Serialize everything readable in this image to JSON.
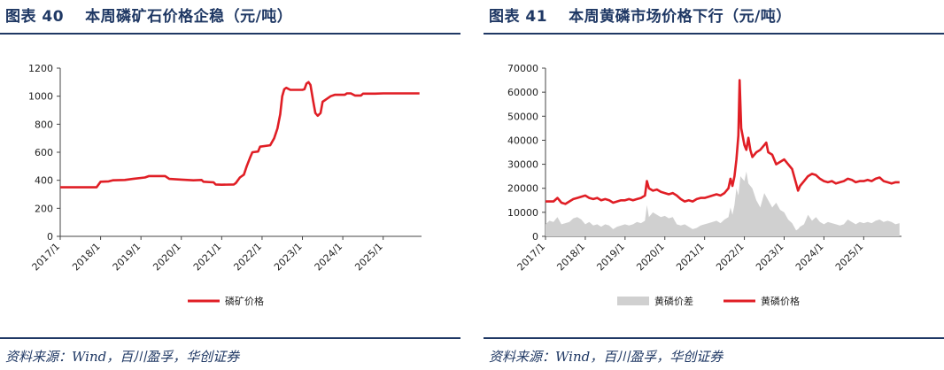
{
  "left": {
    "title_prefix": "图表 40",
    "title_text": "本周磷矿石价格企稳（元/吨）",
    "source": "资料来源：Wind，百川盈孚，华创证券"
  },
  "right": {
    "title_prefix": "图表 41",
    "title_text": "本周黄磷市场价格下行（元/吨）",
    "source": "资料来源：Wind，百川盈孚，华创证券"
  },
  "chart_data": [
    {
      "type": "line",
      "x_ticks": [
        "2017/1",
        "2018/1",
        "2019/1",
        "2020/1",
        "2021/1",
        "2022/1",
        "2023/1",
        "2024/1",
        "2025/1"
      ],
      "x_range": [
        2017.0,
        2025.95
      ],
      "ylim": [
        0,
        1200
      ],
      "y_ticks": [
        0,
        200,
        400,
        600,
        800,
        1000,
        1200
      ],
      "legend_position": "bottom",
      "series": [
        {
          "name": "磷矿价格",
          "color": "#e01e25",
          "points": [
            [
              2017.0,
              350
            ],
            [
              2017.5,
              350
            ],
            [
              2017.9,
              350
            ],
            [
              2018.0,
              390
            ],
            [
              2018.2,
              392
            ],
            [
              2018.3,
              400
            ],
            [
              2018.6,
              402
            ],
            [
              2018.8,
              410
            ],
            [
              2019.1,
              420
            ],
            [
              2019.2,
              430
            ],
            [
              2019.6,
              430
            ],
            [
              2019.7,
              410
            ],
            [
              2020.0,
              405
            ],
            [
              2020.3,
              400
            ],
            [
              2020.5,
              402
            ],
            [
              2020.55,
              390
            ],
            [
              2020.8,
              385
            ],
            [
              2020.85,
              370
            ],
            [
              2021.0,
              368
            ],
            [
              2021.3,
              370
            ],
            [
              2021.35,
              380
            ],
            [
              2021.45,
              420
            ],
            [
              2021.55,
              440
            ],
            [
              2021.62,
              500
            ],
            [
              2021.7,
              560
            ],
            [
              2021.76,
              600
            ],
            [
              2021.9,
              605
            ],
            [
              2021.95,
              640
            ],
            [
              2022.2,
              650
            ],
            [
              2022.3,
              700
            ],
            [
              2022.38,
              770
            ],
            [
              2022.45,
              870
            ],
            [
              2022.5,
              1000
            ],
            [
              2022.55,
              1050
            ],
            [
              2022.6,
              1060
            ],
            [
              2022.7,
              1045
            ],
            [
              2023.0,
              1045
            ],
            [
              2023.05,
              1050
            ],
            [
              2023.1,
              1090
            ],
            [
              2023.15,
              1100
            ],
            [
              2023.2,
              1080
            ],
            [
              2023.27,
              960
            ],
            [
              2023.32,
              880
            ],
            [
              2023.38,
              860
            ],
            [
              2023.45,
              880
            ],
            [
              2023.5,
              960
            ],
            [
              2023.6,
              980
            ],
            [
              2023.7,
              1000
            ],
            [
              2023.8,
              1010
            ],
            [
              2023.9,
              1010
            ],
            [
              2024.05,
              1010
            ],
            [
              2024.1,
              1020
            ],
            [
              2024.2,
              1020
            ],
            [
              2024.3,
              1005
            ],
            [
              2024.45,
              1005
            ],
            [
              2024.5,
              1018
            ],
            [
              2024.8,
              1018
            ],
            [
              2025.0,
              1020
            ],
            [
              2025.5,
              1020
            ],
            [
              2025.9,
              1020
            ]
          ]
        }
      ]
    },
    {
      "type": "line+area",
      "x_ticks": [
        "2017/1",
        "2018/1",
        "2019/1",
        "2020/1",
        "2021/1",
        "2022/1",
        "2023/1",
        "2024/1",
        "2025/1"
      ],
      "x_range": [
        2017.0,
        2025.95
      ],
      "ylim": [
        0,
        70000
      ],
      "y_ticks": [
        0,
        10000,
        20000,
        30000,
        40000,
        50000,
        60000,
        70000
      ],
      "legend_position": "bottom",
      "series": [
        {
          "name": "黄磷价差",
          "type": "area",
          "color": "#d0d0d0",
          "points": [
            [
              2017.0,
              5000
            ],
            [
              2017.1,
              6500
            ],
            [
              2017.2,
              6000
            ],
            [
              2017.3,
              8000
            ],
            [
              2017.4,
              5000
            ],
            [
              2017.5,
              5500
            ],
            [
              2017.6,
              6000
            ],
            [
              2017.7,
              7500
            ],
            [
              2017.8,
              8000
            ],
            [
              2017.9,
              7000
            ],
            [
              2018.0,
              5000
            ],
            [
              2018.1,
              6000
            ],
            [
              2018.2,
              4500
            ],
            [
              2018.3,
              5000
            ],
            [
              2018.4,
              4000
            ],
            [
              2018.5,
              5000
            ],
            [
              2018.6,
              4500
            ],
            [
              2018.7,
              3000
            ],
            [
              2018.8,
              4000
            ],
            [
              2018.9,
              4500
            ],
            [
              2019.0,
              5000
            ],
            [
              2019.1,
              4500
            ],
            [
              2019.2,
              5000
            ],
            [
              2019.3,
              6000
            ],
            [
              2019.4,
              5500
            ],
            [
              2019.5,
              6500
            ],
            [
              2019.55,
              13000
            ],
            [
              2019.6,
              8000
            ],
            [
              2019.7,
              10000
            ],
            [
              2019.8,
              9000
            ],
            [
              2019.9,
              8000
            ],
            [
              2020.0,
              8500
            ],
            [
              2020.1,
              7500
            ],
            [
              2020.2,
              8000
            ],
            [
              2020.3,
              5000
            ],
            [
              2020.4,
              4500
            ],
            [
              2020.5,
              5000
            ],
            [
              2020.6,
              4000
            ],
            [
              2020.7,
              3000
            ],
            [
              2020.8,
              3500
            ],
            [
              2020.9,
              4500
            ],
            [
              2021.0,
              5000
            ],
            [
              2021.1,
              5500
            ],
            [
              2021.2,
              6000
            ],
            [
              2021.3,
              6500
            ],
            [
              2021.4,
              5500
            ],
            [
              2021.5,
              7000
            ],
            [
              2021.6,
              8000
            ],
            [
              2021.65,
              12000
            ],
            [
              2021.7,
              9000
            ],
            [
              2021.75,
              13000
            ],
            [
              2021.8,
              20000
            ],
            [
              2021.85,
              17000
            ],
            [
              2021.9,
              25000
            ],
            [
              2022.0,
              23000
            ],
            [
              2022.05,
              27000
            ],
            [
              2022.1,
              22000
            ],
            [
              2022.2,
              20000
            ],
            [
              2022.3,
              15000
            ],
            [
              2022.4,
              12000
            ],
            [
              2022.5,
              18000
            ],
            [
              2022.6,
              15000
            ],
            [
              2022.7,
              12000
            ],
            [
              2022.8,
              14000
            ],
            [
              2022.9,
              11000
            ],
            [
              2023.0,
              10000
            ],
            [
              2023.1,
              7000
            ],
            [
              2023.2,
              5500
            ],
            [
              2023.3,
              2500
            ],
            [
              2023.35,
              3000
            ],
            [
              2023.4,
              4000
            ],
            [
              2023.5,
              5000
            ],
            [
              2023.6,
              9000
            ],
            [
              2023.7,
              6500
            ],
            [
              2023.8,
              8000
            ],
            [
              2023.9,
              6000
            ],
            [
              2024.0,
              5000
            ],
            [
              2024.1,
              6000
            ],
            [
              2024.2,
              5500
            ],
            [
              2024.3,
              5000
            ],
            [
              2024.4,
              4500
            ],
            [
              2024.5,
              5000
            ],
            [
              2024.6,
              7000
            ],
            [
              2024.7,
              6000
            ],
            [
              2024.8,
              5000
            ],
            [
              2024.9,
              6000
            ],
            [
              2025.0,
              5500
            ],
            [
              2025.1,
              6000
            ],
            [
              2025.2,
              5500
            ],
            [
              2025.3,
              6500
            ],
            [
              2025.4,
              7000
            ],
            [
              2025.5,
              6000
            ],
            [
              2025.6,
              6500
            ],
            [
              2025.7,
              6000
            ],
            [
              2025.8,
              5000
            ],
            [
              2025.9,
              5500
            ]
          ]
        },
        {
          "name": "黄磷价格",
          "type": "line",
          "color": "#e01e25",
          "points": [
            [
              2017.0,
              14500
            ],
            [
              2017.2,
              14500
            ],
            [
              2017.3,
              16000
            ],
            [
              2017.4,
              14000
            ],
            [
              2017.5,
              13500
            ],
            [
              2017.6,
              14500
            ],
            [
              2017.7,
              15500
            ],
            [
              2017.8,
              16000
            ],
            [
              2017.9,
              16500
            ],
            [
              2018.0,
              17000
            ],
            [
              2018.1,
              16000
            ],
            [
              2018.2,
              15500
            ],
            [
              2018.3,
              16000
            ],
            [
              2018.4,
              15000
            ],
            [
              2018.5,
              15500
            ],
            [
              2018.6,
              15000
            ],
            [
              2018.7,
              14000
            ],
            [
              2018.8,
              14500
            ],
            [
              2018.9,
              15000
            ],
            [
              2019.0,
              15000
            ],
            [
              2019.1,
              15500
            ],
            [
              2019.2,
              15000
            ],
            [
              2019.3,
              15500
            ],
            [
              2019.4,
              16000
            ],
            [
              2019.5,
              17000
            ],
            [
              2019.55,
              23000
            ],
            [
              2019.6,
              20000
            ],
            [
              2019.7,
              19000
            ],
            [
              2019.8,
              19500
            ],
            [
              2019.9,
              18500
            ],
            [
              2020.0,
              18000
            ],
            [
              2020.1,
              17500
            ],
            [
              2020.2,
              18000
            ],
            [
              2020.3,
              17000
            ],
            [
              2020.4,
              15500
            ],
            [
              2020.5,
              14500
            ],
            [
              2020.6,
              15000
            ],
            [
              2020.7,
              14500
            ],
            [
              2020.8,
              15500
            ],
            [
              2020.9,
              16000
            ],
            [
              2021.0,
              16000
            ],
            [
              2021.1,
              16500
            ],
            [
              2021.2,
              17000
            ],
            [
              2021.3,
              17500
            ],
            [
              2021.4,
              17000
            ],
            [
              2021.5,
              18000
            ],
            [
              2021.6,
              20000
            ],
            [
              2021.65,
              24000
            ],
            [
              2021.7,
              21000
            ],
            [
              2021.75,
              25000
            ],
            [
              2021.8,
              32000
            ],
            [
              2021.85,
              42000
            ],
            [
              2021.88,
              65000
            ],
            [
              2021.92,
              45000
            ],
            [
              2022.0,
              38000
            ],
            [
              2022.05,
              36000
            ],
            [
              2022.1,
              41000
            ],
            [
              2022.15,
              36000
            ],
            [
              2022.2,
              33000
            ],
            [
              2022.3,
              35000
            ],
            [
              2022.4,
              36000
            ],
            [
              2022.5,
              38000
            ],
            [
              2022.55,
              39000
            ],
            [
              2022.6,
              35000
            ],
            [
              2022.7,
              34000
            ],
            [
              2022.8,
              30000
            ],
            [
              2022.9,
              31000
            ],
            [
              2023.0,
              32000
            ],
            [
              2023.1,
              30000
            ],
            [
              2023.2,
              28000
            ],
            [
              2023.3,
              22000
            ],
            [
              2023.35,
              19000
            ],
            [
              2023.4,
              21000
            ],
            [
              2023.5,
              23000
            ],
            [
              2023.6,
              25000
            ],
            [
              2023.7,
              26000
            ],
            [
              2023.8,
              25500
            ],
            [
              2023.9,
              24000
            ],
            [
              2024.0,
              23000
            ],
            [
              2024.1,
              22500
            ],
            [
              2024.2,
              23000
            ],
            [
              2024.3,
              22000
            ],
            [
              2024.4,
              22500
            ],
            [
              2024.5,
              23000
            ],
            [
              2024.6,
              24000
            ],
            [
              2024.7,
              23500
            ],
            [
              2024.8,
              22500
            ],
            [
              2024.9,
              23000
            ],
            [
              2025.0,
              23000
            ],
            [
              2025.1,
              23500
            ],
            [
              2025.2,
              23000
            ],
            [
              2025.3,
              24000
            ],
            [
              2025.4,
              24500
            ],
            [
              2025.5,
              23000
            ],
            [
              2025.6,
              22500
            ],
            [
              2025.7,
              22000
            ],
            [
              2025.8,
              22500
            ],
            [
              2025.9,
              22500
            ]
          ]
        }
      ]
    }
  ]
}
